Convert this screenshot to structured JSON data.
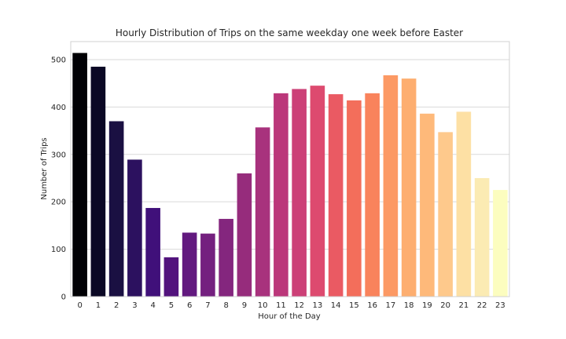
{
  "chart_data": {
    "type": "bar",
    "title": "Hourly Distribution of Trips on the same weekday one week before Easter",
    "xlabel": "Hour of the Day",
    "ylabel": "Number of Trips",
    "categories": [
      "0",
      "1",
      "2",
      "3",
      "4",
      "5",
      "6",
      "7",
      "8",
      "9",
      "10",
      "11",
      "12",
      "13",
      "14",
      "15",
      "16",
      "17",
      "18",
      "19",
      "20",
      "21",
      "22",
      "23"
    ],
    "values": [
      514,
      485,
      370,
      289,
      187,
      83,
      135,
      133,
      164,
      260,
      357,
      429,
      438,
      445,
      427,
      414,
      429,
      467,
      460,
      386,
      347,
      390,
      250,
      225
    ],
    "ylim": [
      0,
      538
    ],
    "yticks": [
      0,
      100,
      200,
      300,
      400,
      500
    ],
    "grid": true,
    "colormap": "magma",
    "colors": [
      "#000004",
      "#0b0825",
      "#1a1042",
      "#2c115f",
      "#40107a",
      "#52137d",
      "#62197f",
      "#74207f",
      "#84267e",
      "#962c7c",
      "#a8327d",
      "#bb377a",
      "#cc4077",
      "#dd4a6f",
      "#ea5a63",
      "#f36e5b",
      "#f9835c",
      "#fc9964",
      "#fdae70",
      "#feb97a",
      "#fec98c",
      "#fde0a4",
      "#fbebb3",
      "#fcfdbf"
    ]
  }
}
